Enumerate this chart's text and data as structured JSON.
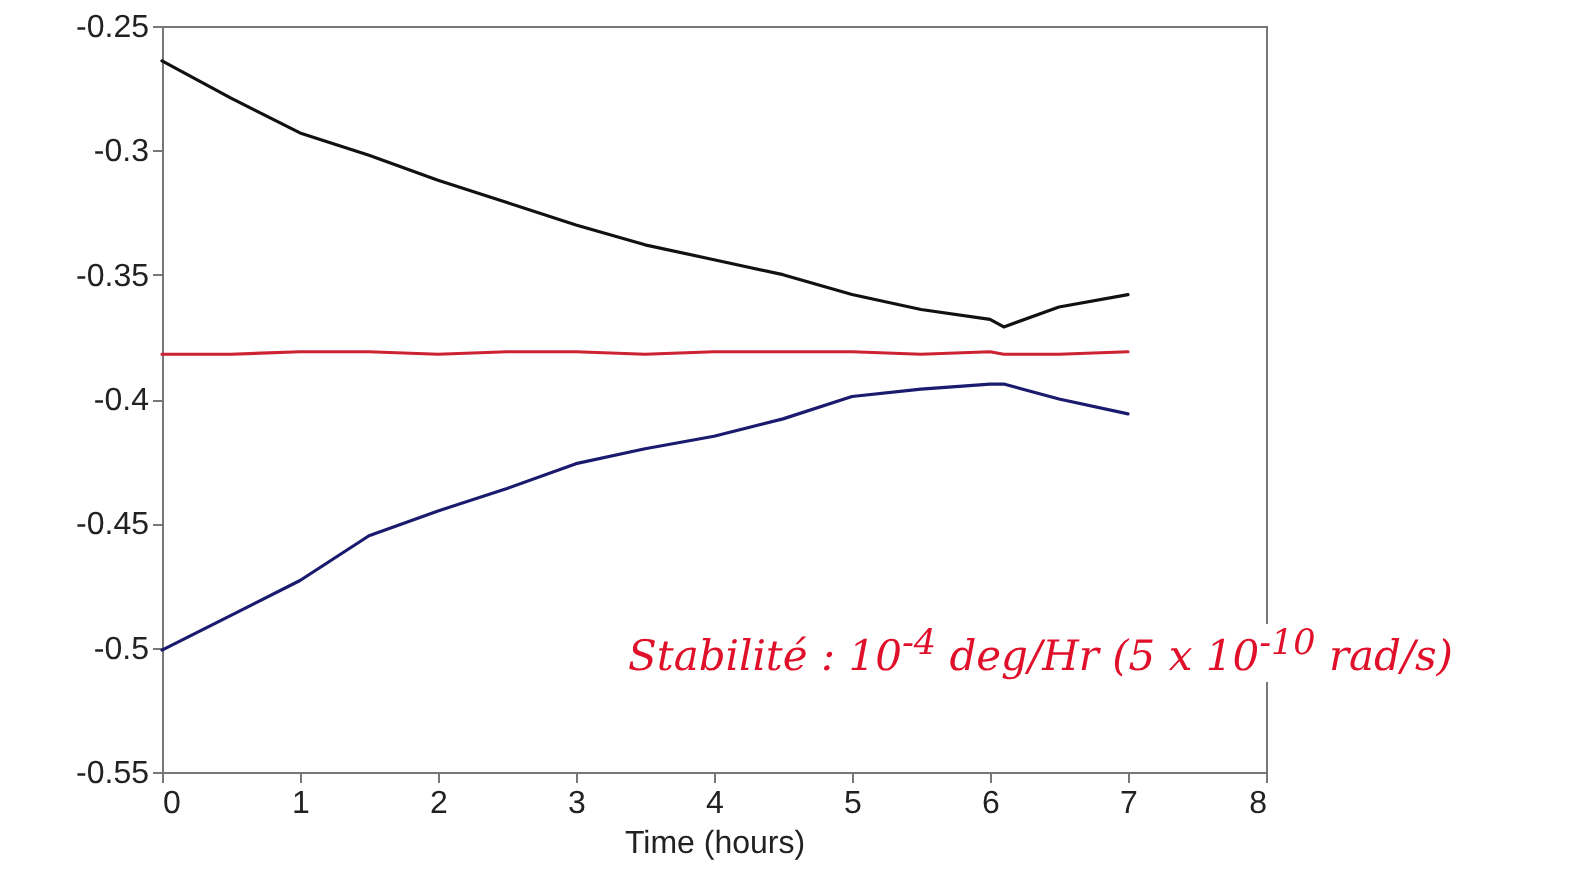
{
  "chart_data": {
    "type": "line",
    "xlabel": "Time (hours)",
    "xlim": [
      0,
      8
    ],
    "xticks": [
      0,
      1,
      2,
      3,
      4,
      5,
      6,
      7,
      8
    ],
    "ylim": [
      -0.55,
      -0.25
    ],
    "yticks": [
      -0.55,
      -0.5,
      -0.45,
      -0.4,
      -0.35,
      -0.3,
      -0.25
    ],
    "x": [
      0,
      0.5,
      1,
      1.5,
      2,
      2.5,
      3,
      3.5,
      4,
      4.5,
      5,
      5.5,
      6,
      6.1,
      6.5,
      7
    ],
    "series": [
      {
        "color": "#111111",
        "values": [
          -0.264,
          -0.279,
          -0.293,
          -0.302,
          -0.312,
          -0.321,
          -0.33,
          -0.338,
          -0.344,
          -0.35,
          -0.358,
          -0.364,
          -0.368,
          -0.371,
          -0.363,
          -0.358
        ]
      },
      {
        "color": "#cc2233",
        "values": [
          -0.382,
          -0.382,
          -0.381,
          -0.381,
          -0.382,
          -0.381,
          -0.381,
          -0.382,
          -0.381,
          -0.381,
          -0.381,
          -0.382,
          -0.381,
          -0.382,
          -0.382,
          -0.381
        ]
      },
      {
        "color": "#1a1a6e",
        "values": [
          -0.501,
          -0.487,
          -0.473,
          -0.455,
          -0.445,
          -0.436,
          -0.426,
          -0.42,
          -0.415,
          -0.408,
          -0.399,
          -0.396,
          -0.394,
          -0.394,
          -0.4,
          -0.406
        ]
      }
    ],
    "grid": false,
    "line_style": "solid",
    "marker": "none",
    "annotations": [
      "Stabilité : 10$^{-4}$ deg/Hr (5 x 10$^{-10}$ rad/s)"
    ]
  }
}
